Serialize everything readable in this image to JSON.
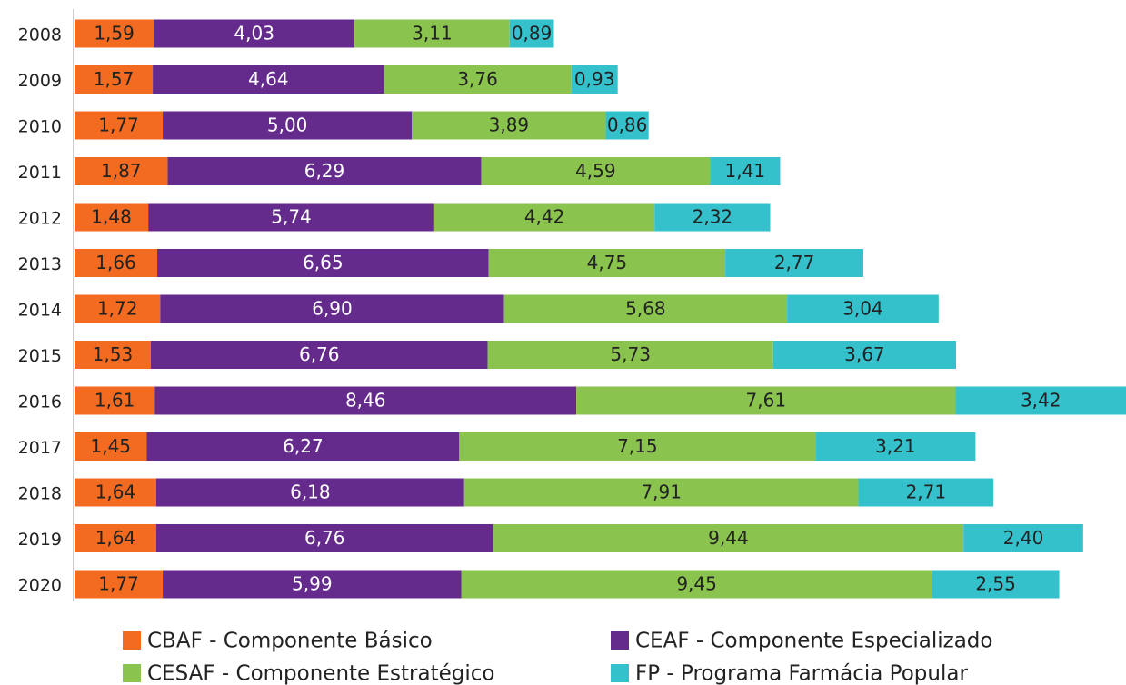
{
  "chart_data": {
    "type": "bar",
    "orientation": "horizontal",
    "stacked": true,
    "categories": [
      "2008",
      "2009",
      "2010",
      "2011",
      "2012",
      "2013",
      "2014",
      "2015",
      "2016",
      "2017",
      "2018",
      "2019",
      "2020"
    ],
    "series": [
      {
        "name": "CBAF - Componente Básico",
        "color": "#f26b21",
        "values": [
          1.59,
          1.57,
          1.77,
          1.87,
          1.48,
          1.66,
          1.72,
          1.53,
          1.61,
          1.45,
          1.64,
          1.64,
          1.77
        ],
        "value_labels": [
          "1,59",
          "1,57",
          "1,77",
          "1,87",
          "1,48",
          "1,66",
          "1,72",
          "1,53",
          "1,61",
          "1,45",
          "1,64",
          "1,64",
          "1,77"
        ]
      },
      {
        "name": "CEAF - Componente Especializado",
        "color": "#642b8c",
        "values": [
          4.03,
          4.64,
          5.0,
          6.29,
          5.74,
          6.65,
          6.9,
          6.76,
          8.46,
          6.27,
          6.18,
          6.76,
          5.99
        ],
        "value_labels": [
          "4,03",
          "4,64",
          "5,00",
          "6,29",
          "5,74",
          "6,65",
          "6,90",
          "6,76",
          "8,46",
          "6,27",
          "6,18",
          "6,76",
          "5,99"
        ]
      },
      {
        "name": "CESAF - Componente Estratégico",
        "color": "#8bc34f",
        "values": [
          3.11,
          3.76,
          3.89,
          4.59,
          4.42,
          4.75,
          5.68,
          5.73,
          7.61,
          7.15,
          7.91,
          9.44,
          9.45
        ],
        "value_labels": [
          "3,11",
          "3,76",
          "3,89",
          "4,59",
          "4,42",
          "4,75",
          "5,68",
          "5,73",
          "7,61",
          "7,15",
          "7,91",
          "9,44",
          "9,45"
        ]
      },
      {
        "name": "FP - Programa Farmácia Popular",
        "color": "#34c1cc",
        "values": [
          0.89,
          0.93,
          0.86,
          1.41,
          2.32,
          2.77,
          3.04,
          3.67,
          3.42,
          3.21,
          2.71,
          2.4,
          2.55
        ],
        "value_labels": [
          "0,89",
          "0,93",
          "0,86",
          "1,41",
          "2,32",
          "2,77",
          "3,04",
          "3,67",
          "3,42",
          "3,21",
          "2,71",
          "2,40",
          "2,55"
        ]
      }
    ]
  }
}
